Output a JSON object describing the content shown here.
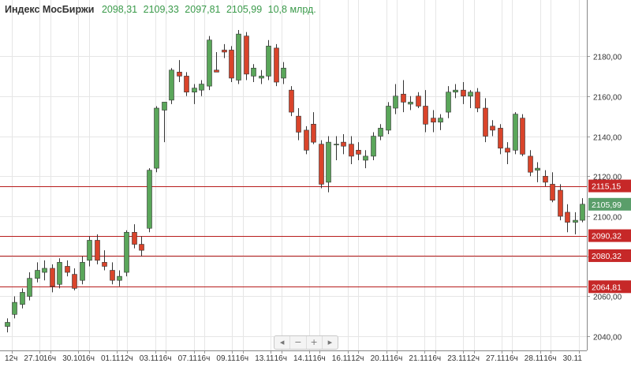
{
  "header": {
    "title": "Индекс МосБиржи",
    "open": "2098,31",
    "high": "2109,33",
    "low": "2097,81",
    "close": "2105,99",
    "volume": "10,8 млрд."
  },
  "nav": {
    "first": "◂",
    "minus": "−",
    "plus": "+",
    "last": "▸"
  },
  "colors": {
    "up": "#5aa65a",
    "down": "#d9442b",
    "level_line": "#b71c1c",
    "level_tag": "#c62828",
    "last_tag": "#5a9e6a",
    "grid": "#e6e6e6"
  },
  "chart_data": {
    "type": "candlestick",
    "title": "Индекс МосБиржи",
    "ylim": [
      2033,
      2208
    ],
    "y_ticks": [
      2040,
      2060,
      2080,
      2100,
      2120,
      2140,
      2160,
      2180
    ],
    "y_tick_labels": [
      "2040,00",
      "2060,00",
      "2080,00",
      "2100,00",
      "2120,00",
      "2140,00",
      "2160,00",
      "2180,00"
    ],
    "x_tick_labels": [
      "12ч",
      "27.10",
      "16ч",
      "30.10",
      "16ч",
      "01.11",
      "12ч",
      "03.11",
      "16ч",
      "07.11",
      "16ч",
      "09.11",
      "16ч",
      "13.11",
      "16ч",
      "14.11",
      "16ч",
      "16.11",
      "12ч",
      "20.11",
      "16ч",
      "21.11",
      "16ч",
      "23.11",
      "12ч",
      "27.11",
      "16ч",
      "28.11",
      "16ч",
      "30.11"
    ],
    "levels": [
      {
        "value": 2115.15,
        "label": "2115,15"
      },
      {
        "value": 2090.32,
        "label": "2090,32"
      },
      {
        "value": 2080.32,
        "label": "2080,32"
      },
      {
        "value": 2064.81,
        "label": "2064,81"
      }
    ],
    "last_price": {
      "value": 2105.99,
      "label": "2105,99"
    },
    "candles": [
      {
        "o": 2045,
        "h": 2049,
        "l": 2042,
        "c": 2047
      },
      {
        "o": 2051,
        "h": 2060,
        "l": 2049,
        "c": 2057
      },
      {
        "o": 2056,
        "h": 2064,
        "l": 2054,
        "c": 2062
      },
      {
        "o": 2060,
        "h": 2072,
        "l": 2058,
        "c": 2069
      },
      {
        "o": 2069,
        "h": 2077,
        "l": 2067,
        "c": 2073
      },
      {
        "o": 2072,
        "h": 2078,
        "l": 2068,
        "c": 2074
      },
      {
        "o": 2074,
        "h": 2076,
        "l": 2062,
        "c": 2065
      },
      {
        "o": 2066,
        "h": 2079,
        "l": 2064,
        "c": 2077
      },
      {
        "o": 2075,
        "h": 2078,
        "l": 2070,
        "c": 2072
      },
      {
        "o": 2071,
        "h": 2074,
        "l": 2063,
        "c": 2064
      },
      {
        "o": 2068,
        "h": 2080,
        "l": 2066,
        "c": 2077
      },
      {
        "o": 2078,
        "h": 2090,
        "l": 2075,
        "c": 2088
      },
      {
        "o": 2088,
        "h": 2091,
        "l": 2076,
        "c": 2078
      },
      {
        "o": 2077,
        "h": 2083,
        "l": 2073,
        "c": 2075
      },
      {
        "o": 2073,
        "h": 2077,
        "l": 2066,
        "c": 2068
      },
      {
        "o": 2068,
        "h": 2073,
        "l": 2065,
        "c": 2070
      },
      {
        "o": 2072,
        "h": 2093,
        "l": 2070,
        "c": 2092
      },
      {
        "o": 2092,
        "h": 2096,
        "l": 2084,
        "c": 2086
      },
      {
        "o": 2086,
        "h": 2090,
        "l": 2080,
        "c": 2083
      },
      {
        "o": 2094,
        "h": 2124,
        "l": 2092,
        "c": 2123
      },
      {
        "o": 2124,
        "h": 2155,
        "l": 2122,
        "c": 2154
      },
      {
        "o": 2153,
        "h": 2157,
        "l": 2137,
        "c": 2157
      },
      {
        "o": 2158,
        "h": 2174,
        "l": 2156,
        "c": 2173
      },
      {
        "o": 2172,
        "h": 2178,
        "l": 2167,
        "c": 2170
      },
      {
        "o": 2170,
        "h": 2172,
        "l": 2160,
        "c": 2162
      },
      {
        "o": 2162,
        "h": 2166,
        "l": 2156,
        "c": 2164
      },
      {
        "o": 2163,
        "h": 2168,
        "l": 2160,
        "c": 2166
      },
      {
        "o": 2165,
        "h": 2190,
        "l": 2163,
        "c": 2188
      },
      {
        "o": 2173,
        "h": 2182,
        "l": 2172,
        "c": 2172
      },
      {
        "o": 2183,
        "h": 2186,
        "l": 2179,
        "c": 2182
      },
      {
        "o": 2183,
        "h": 2185,
        "l": 2167,
        "c": 2169
      },
      {
        "o": 2168,
        "h": 2193,
        "l": 2166,
        "c": 2191
      },
      {
        "o": 2190,
        "h": 2192,
        "l": 2168,
        "c": 2171
      },
      {
        "o": 2170,
        "h": 2176,
        "l": 2167,
        "c": 2174
      },
      {
        "o": 2169,
        "h": 2173,
        "l": 2166,
        "c": 2170
      },
      {
        "o": 2170,
        "h": 2188,
        "l": 2168,
        "c": 2185
      },
      {
        "o": 2184,
        "h": 2186,
        "l": 2165,
        "c": 2167
      },
      {
        "o": 2169,
        "h": 2177,
        "l": 2166,
        "c": 2174
      },
      {
        "o": 2163,
        "h": 2165,
        "l": 2150,
        "c": 2152
      },
      {
        "o": 2150,
        "h": 2154,
        "l": 2138,
        "c": 2142
      },
      {
        "o": 2143,
        "h": 2145,
        "l": 2131,
        "c": 2133
      },
      {
        "o": 2146,
        "h": 2152,
        "l": 2136,
        "c": 2137
      },
      {
        "o": 2136,
        "h": 2138,
        "l": 2114,
        "c": 2116
      },
      {
        "o": 2117,
        "h": 2140,
        "l": 2112,
        "c": 2137
      },
      {
        "o": 2136,
        "h": 2140,
        "l": 2128,
        "c": 2136
      },
      {
        "o": 2137,
        "h": 2141,
        "l": 2131,
        "c": 2135
      },
      {
        "o": 2136,
        "h": 2140,
        "l": 2126,
        "c": 2130
      },
      {
        "o": 2133,
        "h": 2137,
        "l": 2128,
        "c": 2131
      },
      {
        "o": 2128,
        "h": 2133,
        "l": 2124,
        "c": 2130
      },
      {
        "o": 2130,
        "h": 2142,
        "l": 2128,
        "c": 2140
      },
      {
        "o": 2140,
        "h": 2146,
        "l": 2138,
        "c": 2144
      },
      {
        "o": 2143,
        "h": 2157,
        "l": 2141,
        "c": 2155
      },
      {
        "o": 2154,
        "h": 2166,
        "l": 2151,
        "c": 2160
      },
      {
        "o": 2161,
        "h": 2168,
        "l": 2152,
        "c": 2157
      },
      {
        "o": 2156,
        "h": 2160,
        "l": 2153,
        "c": 2157
      },
      {
        "o": 2160,
        "h": 2162,
        "l": 2154,
        "c": 2155
      },
      {
        "o": 2155,
        "h": 2163,
        "l": 2142,
        "c": 2146
      },
      {
        "o": 2149,
        "h": 2153,
        "l": 2142,
        "c": 2147
      },
      {
        "o": 2147,
        "h": 2151,
        "l": 2143,
        "c": 2149
      },
      {
        "o": 2152,
        "h": 2165,
        "l": 2149,
        "c": 2162
      },
      {
        "o": 2162,
        "h": 2166,
        "l": 2159,
        "c": 2163
      },
      {
        "o": 2163,
        "h": 2167,
        "l": 2156,
        "c": 2160
      },
      {
        "o": 2160,
        "h": 2163,
        "l": 2154,
        "c": 2162
      },
      {
        "o": 2162,
        "h": 2164,
        "l": 2152,
        "c": 2154
      },
      {
        "o": 2154,
        "h": 2159,
        "l": 2137,
        "c": 2140
      },
      {
        "o": 2145,
        "h": 2148,
        "l": 2140,
        "c": 2143
      },
      {
        "o": 2144,
        "h": 2146,
        "l": 2131,
        "c": 2134
      },
      {
        "o": 2134,
        "h": 2137,
        "l": 2126,
        "c": 2132
      },
      {
        "o": 2133,
        "h": 2152,
        "l": 2131,
        "c": 2151
      },
      {
        "o": 2149,
        "h": 2151,
        "l": 2130,
        "c": 2131
      },
      {
        "o": 2130,
        "h": 2133,
        "l": 2120,
        "c": 2122
      },
      {
        "o": 2123,
        "h": 2127,
        "l": 2117,
        "c": 2124
      },
      {
        "o": 2120,
        "h": 2123,
        "l": 2115,
        "c": 2117
      },
      {
        "o": 2116,
        "h": 2122,
        "l": 2107,
        "c": 2108
      },
      {
        "o": 2113,
        "h": 2116,
        "l": 2098,
        "c": 2100
      },
      {
        "o": 2102,
        "h": 2106,
        "l": 2092,
        "c": 2097
      },
      {
        "o": 2097,
        "h": 2102,
        "l": 2091,
        "c": 2098
      },
      {
        "o": 2098,
        "h": 2109,
        "l": 2097,
        "c": 2106
      }
    ]
  }
}
